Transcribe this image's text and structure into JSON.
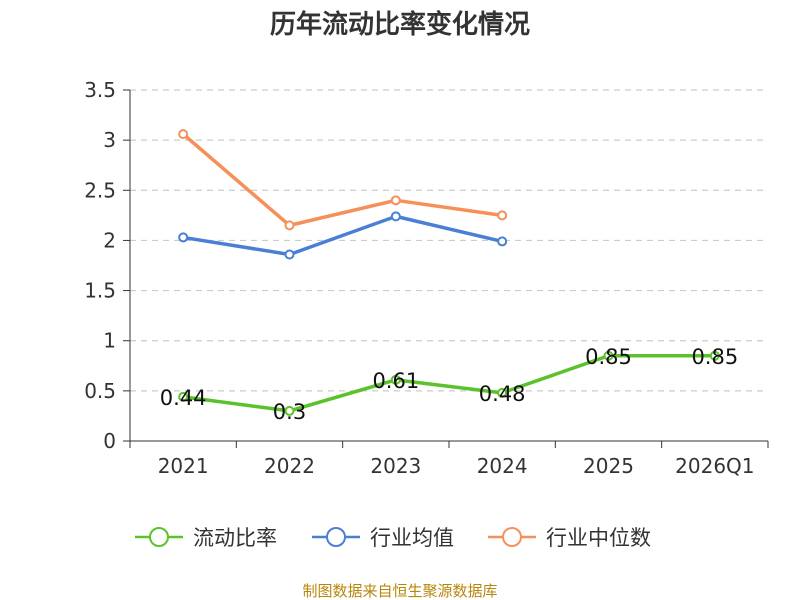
{
  "chart_data": {
    "type": "line",
    "title": "历年流动比率变化情况",
    "categories": [
      "2021",
      "2022",
      "2023",
      "2024",
      "2025",
      "2026Q1"
    ],
    "ylim": [
      0,
      3.5
    ],
    "yticks": [
      "0",
      "0.5",
      "1",
      "1.5",
      "2",
      "2.5",
      "3",
      "3.5"
    ],
    "grid": true,
    "legend_position": "bottom",
    "series": [
      {
        "name": "流动比率",
        "color": "#5cc22c",
        "values": [
          0.44,
          0.3,
          0.61,
          0.48,
          0.85,
          0.85
        ],
        "labels": [
          "0.44",
          "0.3",
          "0.61",
          "0.48",
          "0.85",
          "0.85"
        ]
      },
      {
        "name": "行业均值",
        "color": "#4a7fd6",
        "values": [
          2.03,
          1.86,
          2.24,
          1.99,
          null,
          null
        ]
      },
      {
        "name": "行业中位数",
        "color": "#f5905a",
        "values": [
          3.06,
          2.15,
          2.4,
          2.25,
          null,
          null
        ]
      }
    ],
    "source": "制图数据来自恒生聚源数据库"
  }
}
